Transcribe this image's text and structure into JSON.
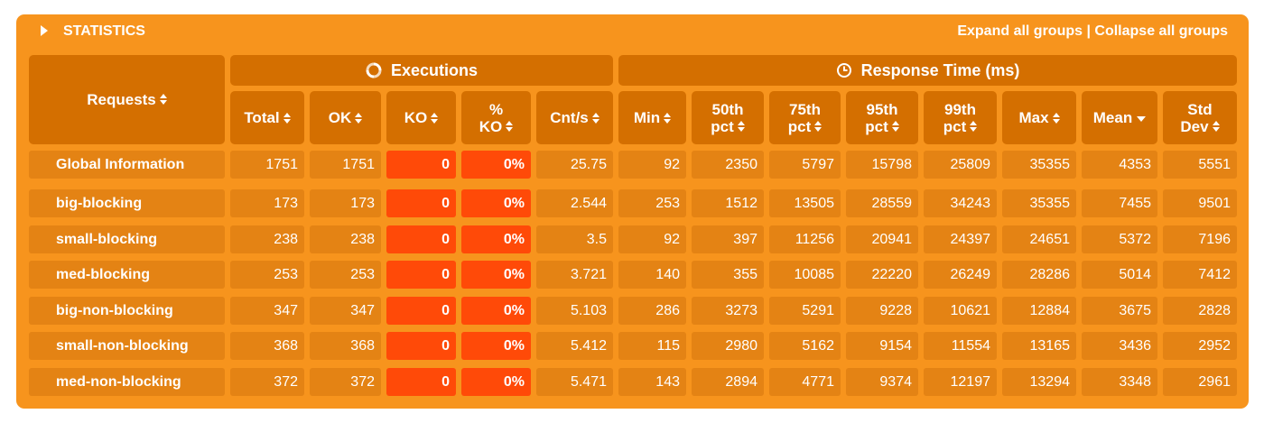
{
  "title": "STATISTICS",
  "links": {
    "expand": "Expand all groups",
    "separator": "|",
    "collapse": "Collapse all groups"
  },
  "groups": {
    "requests": "Requests",
    "executions": "Executions",
    "response_time": "Response Time (ms)"
  },
  "columns": [
    {
      "label": "Total",
      "sort": "both"
    },
    {
      "label": "OK",
      "sort": "both"
    },
    {
      "label": "KO",
      "sort": "both"
    },
    {
      "label": "%\nKO",
      "sort": "both"
    },
    {
      "label": "Cnt/s",
      "sort": "both"
    },
    {
      "label": "Min",
      "sort": "both"
    },
    {
      "label": "50th\npct",
      "sort": "both"
    },
    {
      "label": "75th\npct",
      "sort": "both"
    },
    {
      "label": "95th\npct",
      "sort": "both"
    },
    {
      "label": "99th\npct",
      "sort": "both"
    },
    {
      "label": "Max",
      "sort": "both"
    },
    {
      "label": "Mean",
      "sort": "desc"
    },
    {
      "label": "Std\nDev",
      "sort": "both"
    }
  ],
  "rows": [
    {
      "name": "Global Information",
      "values": [
        "1751",
        "1751",
        "0",
        "0%",
        "25.75",
        "92",
        "2350",
        "5797",
        "15798",
        "25809",
        "35355",
        "4353",
        "5551"
      ]
    },
    {
      "name": "big-blocking",
      "values": [
        "173",
        "173",
        "0",
        "0%",
        "2.544",
        "253",
        "1512",
        "13505",
        "28559",
        "34243",
        "35355",
        "7455",
        "9501"
      ]
    },
    {
      "name": "small-blocking",
      "values": [
        "238",
        "238",
        "0",
        "0%",
        "3.5",
        "92",
        "397",
        "11256",
        "20941",
        "24397",
        "24651",
        "5372",
        "7196"
      ]
    },
    {
      "name": "med-blocking",
      "values": [
        "253",
        "253",
        "0",
        "0%",
        "3.721",
        "140",
        "355",
        "10085",
        "22220",
        "26249",
        "28286",
        "5014",
        "7412"
      ]
    },
    {
      "name": "big-non-blocking",
      "values": [
        "347",
        "347",
        "0",
        "0%",
        "5.103",
        "286",
        "3273",
        "5291",
        "9228",
        "10621",
        "12884",
        "3675",
        "2828"
      ]
    },
    {
      "name": "small-non-blocking",
      "values": [
        "368",
        "368",
        "0",
        "0%",
        "5.412",
        "115",
        "2980",
        "5162",
        "9154",
        "11554",
        "13165",
        "3436",
        "2952"
      ]
    },
    {
      "name": "med-non-blocking",
      "values": [
        "372",
        "372",
        "0",
        "0%",
        "5.471",
        "143",
        "2894",
        "4771",
        "9374",
        "12197",
        "13294",
        "3348",
        "2961"
      ]
    }
  ],
  "colors": {
    "panel": "#f7941d",
    "header": "#d46f00",
    "ko_highlight": "#ff4a08",
    "text": "#ffffff"
  },
  "icons": {
    "title": "expand-triangle-icon",
    "executions": "refresh-cycle-icon",
    "response_time": "clock-icon"
  }
}
